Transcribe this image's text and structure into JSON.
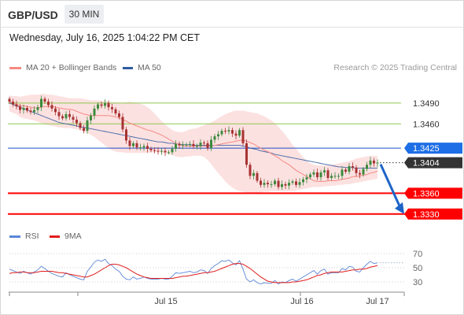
{
  "header": {
    "symbol": "GBP/USD",
    "timeframe": "30 MIN"
  },
  "datetime": "Wednesday, July 16, 2025 1:04:22 PM CET",
  "legend": {
    "ma_bb": "MA 20 + Bollinger Bands",
    "ma50": "MA 50",
    "copyright": "Research © 2025 Trading Central"
  },
  "rsi_legend": {
    "rsi": "RSI",
    "ma": "9MA"
  },
  "colors": {
    "ma20": "#f58a82",
    "ma50": "#2f5ba0",
    "bb_fill": "#fcdcdc",
    "support": "#ff0000",
    "resistance": "#8cc84b",
    "pivot": "#1f4fc4",
    "current": "#333333",
    "bull": "#3d8a3d",
    "bear": "#a83232",
    "arrow": "#1e64c8",
    "rsi": "#5b87d6",
    "rsi_ma": "#e11e1e",
    "pivot_tag": "#1e6ee6"
  },
  "chart_data": {
    "type": "candlestick",
    "title": "GBP/USD 30 MIN",
    "y_range": [
      1.3315,
      1.3525
    ],
    "x_labels": [
      "Jul 15",
      "Jul 16",
      "Jul 17"
    ],
    "levels": [
      {
        "value": 1.349,
        "label": "1.3490",
        "kind": "resistance"
      },
      {
        "value": 1.346,
        "label": "1.3460",
        "kind": "resistance"
      },
      {
        "value": 1.3425,
        "label": "1.3425",
        "kind": "pivot"
      },
      {
        "value": 1.3404,
        "label": "1.3404",
        "kind": "current"
      },
      {
        "value": 1.336,
        "label": "1.3360",
        "kind": "support"
      },
      {
        "value": 1.333,
        "label": "1.3330",
        "kind": "support"
      }
    ],
    "close": [
      1.3492,
      1.3488,
      1.3485,
      1.348,
      1.3483,
      1.3479,
      1.3477,
      1.348,
      1.3484,
      1.3496,
      1.3492,
      1.3487,
      1.3482,
      1.3477,
      1.3471,
      1.3468,
      1.3474,
      1.347,
      1.3466,
      1.3461,
      1.3454,
      1.345,
      1.3465,
      1.3472,
      1.3482,
      1.3488,
      1.3486,
      1.349,
      1.3484,
      1.3481,
      1.3475,
      1.347,
      1.3452,
      1.3436,
      1.3428,
      1.3432,
      1.3426,
      1.3426,
      1.3428,
      1.3424,
      1.3422,
      1.3421,
      1.342,
      1.3421,
      1.3419,
      1.3419,
      1.3424,
      1.3431,
      1.3429,
      1.343,
      1.343,
      1.3431,
      1.3428,
      1.3428,
      1.3433,
      1.3432,
      1.3425,
      1.3437,
      1.3442,
      1.3445,
      1.345,
      1.3449,
      1.3451,
      1.3446,
      1.3443,
      1.3451,
      1.3432,
      1.3401,
      1.3385,
      1.3389,
      1.3378,
      1.3372,
      1.3375,
      1.3373,
      1.3373,
      1.3378,
      1.3369,
      1.3373,
      1.3371,
      1.3375,
      1.3377,
      1.3372,
      1.3376,
      1.338,
      1.3383,
      1.3387,
      1.339,
      1.3383,
      1.339,
      1.3393,
      1.3382,
      1.3385,
      1.3385,
      1.3385,
      1.3394,
      1.3391,
      1.3399,
      1.3397,
      1.3389,
      1.3387,
      1.3395,
      1.3401,
      1.3407,
      1.3403,
      1.3404
    ],
    "ma20": [
      1.3492,
      1.349,
      1.3488,
      1.3486,
      1.3486,
      1.3485,
      1.3484,
      1.3483,
      1.3483,
      1.3484,
      1.3485,
      1.3485,
      1.3485,
      1.3484,
      1.3483,
      1.3482,
      1.3481,
      1.3481,
      1.348,
      1.3478,
      1.3476,
      1.3474,
      1.3473,
      1.3472,
      1.3472,
      1.3472,
      1.3472,
      1.3472,
      1.3472,
      1.3471,
      1.347,
      1.3469,
      1.3466,
      1.3464,
      1.3461,
      1.3459,
      1.3457,
      1.3455,
      1.3453,
      1.3451,
      1.345,
      1.3448,
      1.3446,
      1.3444,
      1.3441,
      1.3438,
      1.3435,
      1.3432,
      1.343,
      1.3428,
      1.3428,
      1.3428,
      1.3428,
      1.3428,
      1.3428,
      1.3428,
      1.3428,
      1.3428,
      1.3429,
      1.343,
      1.3431,
      1.3432,
      1.3433,
      1.3434,
      1.3435,
      1.3436,
      1.3437,
      1.3435,
      1.3433,
      1.3431,
      1.3428,
      1.3425,
      1.3422,
      1.342,
      1.3417,
      1.3414,
      1.3411,
      1.3407,
      1.3404,
      1.3401,
      1.3397,
      1.3393,
      1.339,
      1.3387,
      1.3384,
      1.3381,
      1.3378,
      1.3377,
      1.3377,
      1.3377,
      1.3378,
      1.3378,
      1.3378,
      1.3379,
      1.338,
      1.3381,
      1.3382,
      1.3384,
      1.3384,
      1.3385,
      1.3386,
      1.3387,
      1.3389,
      1.339,
      1.3392
    ],
    "ma50": [
      1.349,
      1.3488,
      1.3486,
      1.3484,
      1.3482,
      1.348,
      1.3478,
      1.3476,
      1.3474,
      1.3472,
      1.347,
      1.3468,
      1.3466,
      1.3464,
      1.3462,
      1.3461,
      1.346,
      1.3459,
      1.3458,
      1.3457,
      1.3456,
      1.3455,
      1.3454,
      1.3453,
      1.3452,
      1.3451,
      1.345,
      1.3449,
      1.3448,
      1.3447,
      1.3446,
      1.3445,
      1.3444,
      1.3443,
      1.3442,
      1.3441,
      1.344,
      1.3439,
      1.3438,
      1.3437,
      1.3436,
      1.3435,
      1.3434,
      1.3434,
      1.3433,
      1.3432,
      1.3432,
      1.3431,
      1.3431,
      1.343,
      1.343,
      1.343,
      1.3429,
      1.3429,
      1.3429,
      1.3429,
      1.3429,
      1.3429,
      1.3429,
      1.3429,
      1.3429,
      1.3429,
      1.3429,
      1.3429,
      1.3429,
      1.3429,
      1.3428,
      1.3427,
      1.3425,
      1.3424,
      1.3423,
      1.3421,
      1.342,
      1.3419,
      1.3418,
      1.3416,
      1.3415,
      1.3414,
      1.3413,
      1.3412,
      1.3411,
      1.341,
      1.3409,
      1.3408,
      1.3407,
      1.3406,
      1.3405,
      1.3404,
      1.3403,
      1.3402,
      1.3401,
      1.34,
      1.3399,
      1.3398,
      1.3398,
      1.3397,
      1.3397,
      1.3397,
      1.3396,
      1.3396,
      1.3396,
      1.3396,
      1.3396,
      1.3396,
      1.3396
    ],
    "bb_upper": [
      1.3501,
      1.35,
      1.35,
      1.3499,
      1.35,
      1.3501,
      1.3502,
      1.3502,
      1.3502,
      1.3503,
      1.3503,
      1.3502,
      1.3502,
      1.3501,
      1.35,
      1.3499,
      1.3498,
      1.3497,
      1.3497,
      1.3497,
      1.3497,
      1.3496,
      1.3495,
      1.3494,
      1.3494,
      1.3494,
      1.3493,
      1.3493,
      1.3492,
      1.3491,
      1.3491,
      1.349,
      1.349,
      1.3491,
      1.3492,
      1.3491,
      1.349,
      1.3489,
      1.3487,
      1.3484,
      1.348,
      1.3475,
      1.3469,
      1.3464,
      1.3459,
      1.3455,
      1.3451,
      1.3449,
      1.3448,
      1.3448,
      1.345,
      1.3452,
      1.3453,
      1.3454,
      1.3456,
      1.3458,
      1.346,
      1.3462,
      1.3465,
      1.3468,
      1.3471,
      1.3474,
      1.3476,
      1.3478,
      1.3479,
      1.3479,
      1.3479,
      1.3478,
      1.3477,
      1.3476,
      1.3475,
      1.3473,
      1.3471,
      1.3468,
      1.3465,
      1.3461,
      1.3456,
      1.345,
      1.3444,
      1.3437,
      1.343,
      1.3424,
      1.3418,
      1.3412,
      1.3407,
      1.3403,
      1.3401,
      1.34,
      1.34,
      1.34,
      1.3401,
      1.3401,
      1.3402,
      1.3403,
      1.3404,
      1.3405,
      1.3406,
      1.3408,
      1.341,
      1.3411,
      1.3412,
      1.3413,
      1.3414,
      1.3414,
      1.3414
    ],
    "bb_lower": [
      1.3478,
      1.3476,
      1.3474,
      1.347,
      1.3468,
      1.3467,
      1.3466,
      1.3465,
      1.3463,
      1.3461,
      1.3459,
      1.3458,
      1.3457,
      1.3456,
      1.3455,
      1.3454,
      1.3454,
      1.3454,
      1.3453,
      1.3452,
      1.3451,
      1.3449,
      1.3447,
      1.3444,
      1.3441,
      1.3437,
      1.3433,
      1.3429,
      1.3425,
      1.3422,
      1.342,
      1.3419,
      1.3419,
      1.3418,
      1.3418,
      1.3418,
      1.3418,
      1.3418,
      1.3418,
      1.3418,
      1.3419,
      1.3419,
      1.3419,
      1.3418,
      1.3417,
      1.3416,
      1.3415,
      1.3413,
      1.3412,
      1.3412,
      1.3413,
      1.3413,
      1.3414,
      1.3414,
      1.3414,
      1.3412,
      1.3408,
      1.3402,
      1.3395,
      1.3389,
      1.3383,
      1.3377,
      1.3372,
      1.3368,
      1.3365,
      1.3363,
      1.3362,
      1.3361,
      1.336,
      1.336,
      1.3361,
      1.3361,
      1.3362,
      1.3362,
      1.3363,
      1.3363,
      1.3363,
      1.3363,
      1.3363,
      1.3363,
      1.3363,
      1.3364,
      1.3365,
      1.3366,
      1.3367,
      1.3368,
      1.3369,
      1.3369,
      1.3369,
      1.337,
      1.337,
      1.3371,
      1.3371,
      1.3372,
      1.3372,
      1.3373,
      1.3373,
      1.3374,
      1.3375,
      1.3376,
      1.3377,
      1.3378,
      1.3379,
      1.338,
      1.3381
    ],
    "forecast_arrow": {
      "from": 1.3404,
      "to": 1.333
    },
    "rsi": {
      "y_range": [
        20,
        80
      ],
      "levels": [
        {
          "value": 70,
          "label": "70"
        },
        {
          "value": 50,
          "label": "50"
        },
        {
          "value": 30,
          "label": "30"
        }
      ],
      "values": [
        48,
        46,
        44,
        42,
        45,
        43,
        41,
        44,
        47,
        52,
        49,
        45,
        42,
        40,
        38,
        37,
        43,
        40,
        38,
        36,
        34,
        33,
        45,
        51,
        58,
        61,
        59,
        62,
        56,
        53,
        48,
        45,
        38,
        34,
        33,
        37,
        34,
        35,
        37,
        35,
        34,
        34,
        34,
        35,
        34,
        34,
        38,
        43,
        42,
        43,
        44,
        45,
        43,
        44,
        47,
        46,
        42,
        49,
        53,
        56,
        60,
        59,
        61,
        57,
        54,
        60,
        48,
        34,
        30,
        33,
        29,
        27,
        29,
        28,
        28,
        32,
        27,
        30,
        29,
        32,
        34,
        31,
        34,
        37,
        40,
        43,
        46,
        41,
        46,
        48,
        41,
        43,
        43,
        43,
        49,
        47,
        52,
        51,
        45,
        44,
        50,
        55,
        59,
        56,
        57
      ],
      "ma9": [
        42,
        43,
        43,
        44,
        44,
        43,
        43,
        43,
        44,
        45,
        45,
        45,
        45,
        44,
        43,
        43,
        42,
        41,
        40,
        39,
        38,
        37,
        37,
        39,
        41,
        44,
        47,
        50,
        53,
        55,
        55,
        54,
        52,
        50,
        47,
        44,
        41,
        39,
        37,
        36,
        35,
        35,
        35,
        35,
        35,
        35,
        35,
        36,
        37,
        38,
        38,
        39,
        40,
        41,
        42,
        43,
        43,
        44,
        45,
        47,
        49,
        51,
        53,
        55,
        56,
        56,
        55,
        52,
        49,
        45,
        41,
        37,
        34,
        31,
        30,
        29,
        29,
        29,
        29,
        29,
        30,
        30,
        31,
        32,
        33,
        35,
        37,
        39,
        40,
        42,
        43,
        44,
        44,
        44,
        44,
        45,
        46,
        47,
        47,
        48,
        48,
        49,
        51,
        52,
        53
      ]
    }
  }
}
